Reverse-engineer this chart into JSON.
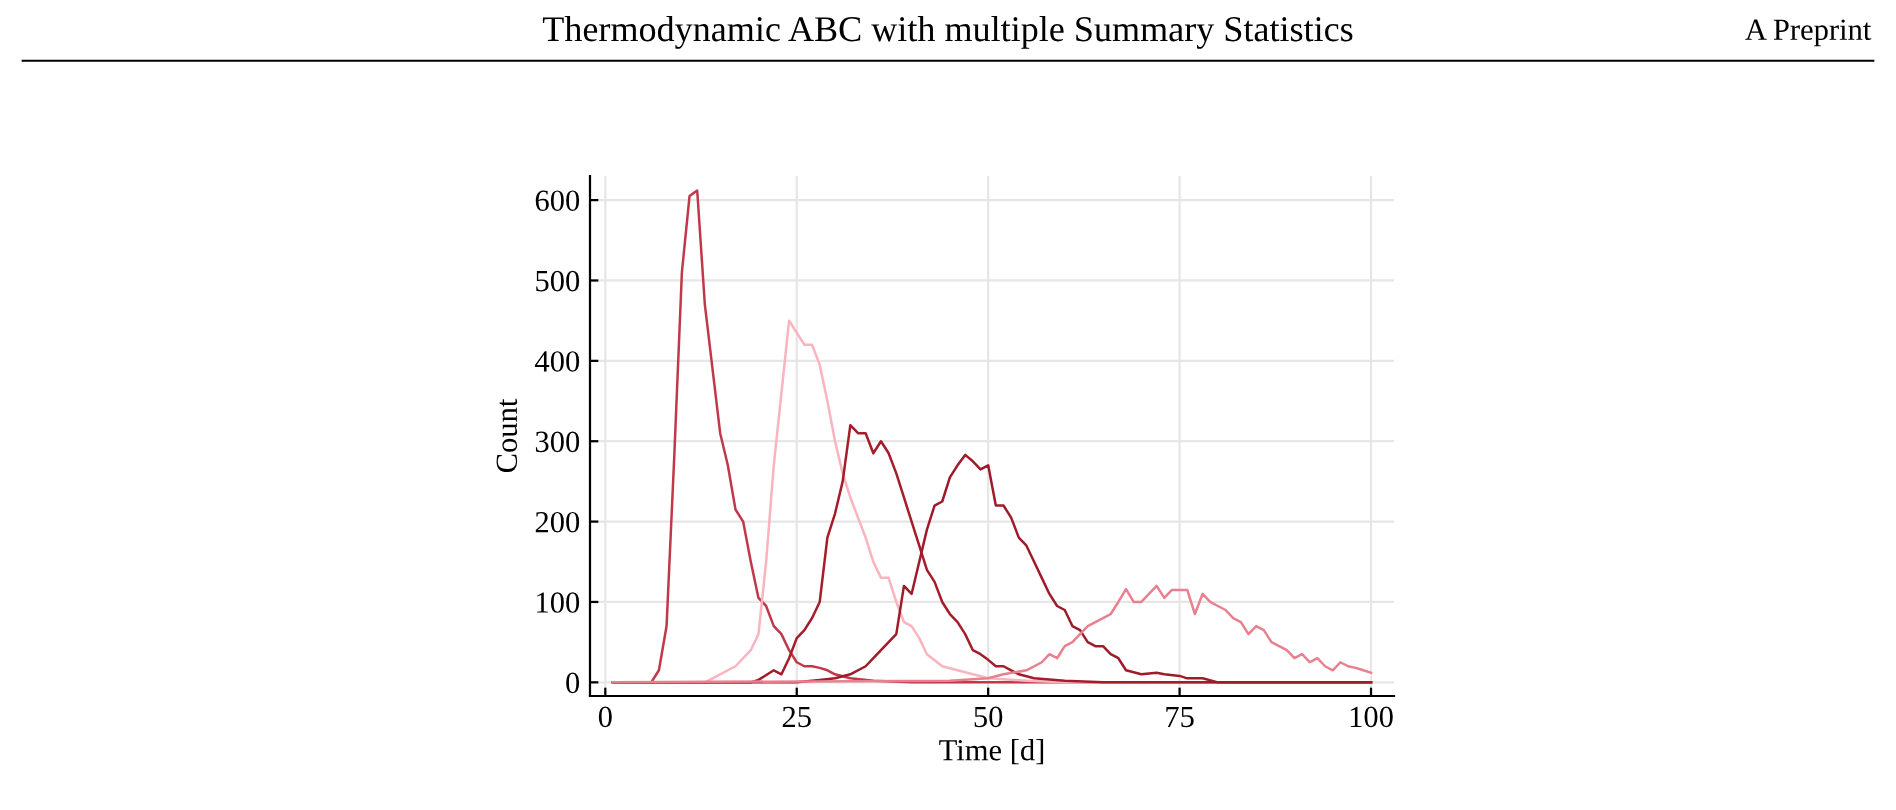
{
  "chart_data": {
    "type": "line",
    "xlabel": "Time [d]",
    "ylabel": "Count",
    "annotations": [
      "Thermodynamic ABC with multiple Summary Statistics",
      "A Preprint"
    ],
    "xlim": [
      -2,
      103
    ],
    "ylim": [
      -17,
      630
    ],
    "xticks": [
      0,
      25,
      50,
      75,
      100
    ],
    "yticks": [
      0,
      100,
      200,
      300,
      400,
      500,
      600
    ],
    "grid": true,
    "legend": false,
    "marker": "none",
    "line_style": "solid",
    "series": [
      {
        "color": "#c0394a",
        "x": [
          1,
          6,
          7,
          8,
          9,
          10,
          11,
          12,
          13,
          14,
          15,
          16,
          17,
          18,
          19,
          20,
          21,
          22,
          23,
          24,
          25,
          26,
          27,
          28,
          29,
          30,
          32,
          35,
          40,
          100
        ],
        "values": [
          0,
          0,
          15,
          70,
          280,
          510,
          605,
          612,
          470,
          390,
          310,
          270,
          215,
          200,
          150,
          105,
          95,
          70,
          60,
          40,
          25,
          20,
          20,
          18,
          15,
          10,
          5,
          2,
          0,
          0
        ]
      },
      {
        "color": "#f9b4bf",
        "x": [
          1,
          13,
          14,
          17,
          19,
          20,
          21,
          22,
          23,
          24,
          25,
          26,
          27,
          28,
          29,
          30,
          31,
          32,
          33,
          34,
          35,
          36,
          37,
          38,
          39,
          40,
          41,
          42,
          44,
          46,
          48,
          50,
          55,
          60,
          100
        ],
        "values": [
          0,
          0,
          5,
          20,
          40,
          60,
          150,
          270,
          360,
          450,
          435,
          420,
          420,
          395,
          350,
          300,
          260,
          230,
          205,
          180,
          150,
          130,
          130,
          100,
          75,
          70,
          55,
          35,
          20,
          15,
          10,
          5,
          2,
          0,
          0
        ]
      },
      {
        "color": "#a51c2a",
        "x": [
          1,
          19,
          20,
          22,
          23,
          24,
          25,
          26,
          27,
          28,
          29,
          30,
          31,
          32,
          33,
          34,
          35,
          36,
          37,
          38,
          39,
          40,
          41,
          42,
          43,
          44,
          45,
          46,
          47,
          48,
          49,
          50,
          51,
          52,
          53,
          54,
          56,
          60,
          65,
          100
        ],
        "values": [
          0,
          0,
          3,
          15,
          10,
          30,
          55,
          65,
          80,
          100,
          180,
          210,
          250,
          320,
          310,
          310,
          285,
          300,
          285,
          260,
          230,
          200,
          170,
          140,
          125,
          100,
          85,
          75,
          60,
          40,
          35,
          28,
          20,
          20,
          15,
          10,
          5,
          2,
          0,
          0
        ]
      },
      {
        "color": "#9e1b2a",
        "x": [
          1,
          25,
          28,
          30,
          32,
          34,
          36,
          38,
          39,
          40,
          41,
          42,
          43,
          44,
          45,
          46,
          47,
          48,
          49,
          50,
          51,
          52,
          53,
          54,
          55,
          56,
          57,
          58,
          59,
          60,
          61,
          62,
          63,
          64,
          65,
          66,
          67,
          68,
          70,
          72,
          73,
          75,
          76,
          78,
          80,
          100
        ],
        "values": [
          0,
          0,
          3,
          5,
          10,
          20,
          40,
          60,
          120,
          110,
          150,
          190,
          220,
          225,
          255,
          270,
          283,
          275,
          265,
          270,
          220,
          220,
          205,
          180,
          170,
          150,
          130,
          110,
          95,
          90,
          70,
          65,
          50,
          45,
          45,
          35,
          30,
          15,
          10,
          12,
          10,
          8,
          5,
          5,
          0,
          0
        ]
      },
      {
        "color": "#e8808f",
        "x": [
          1,
          45,
          50,
          52,
          55,
          57,
          58,
          59,
          60,
          61,
          62,
          63,
          64,
          65,
          66,
          67,
          68,
          69,
          70,
          71,
          72,
          73,
          74,
          75,
          76,
          77,
          78,
          79,
          80,
          81,
          82,
          83,
          84,
          85,
          86,
          87,
          88,
          89,
          90,
          91,
          92,
          93,
          94,
          95,
          96,
          97,
          98,
          99,
          100
        ],
        "values": [
          0,
          2,
          5,
          10,
          15,
          25,
          35,
          30,
          45,
          50,
          60,
          70,
          75,
          80,
          85,
          100,
          116,
          100,
          100,
          110,
          120,
          105,
          115,
          115,
          115,
          85,
          110,
          100,
          95,
          90,
          80,
          75,
          60,
          70,
          65,
          50,
          45,
          40,
          30,
          35,
          25,
          30,
          20,
          15,
          25,
          20,
          18,
          15,
          12
        ]
      }
    ]
  }
}
